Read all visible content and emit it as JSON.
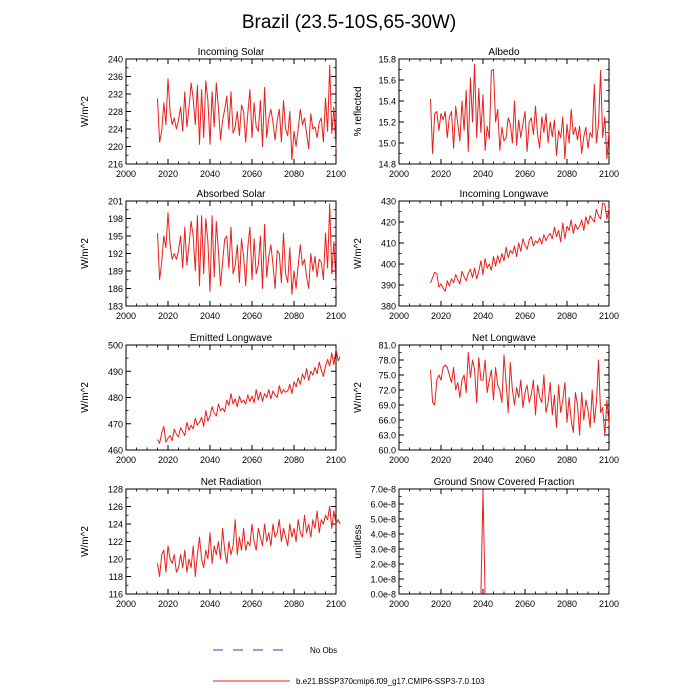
{
  "figure": {
    "title": "Brazil (23.5-10S,65-30W)",
    "legend": [
      {
        "label": "No Obs",
        "style": "dashed",
        "color": "#3b3bbb"
      },
      {
        "label": "b.e21.BSSP370cmip6.f09_g17.CMIP6-SSP3-7.0.103",
        "style": "solid",
        "color": "#e8201b"
      }
    ]
  },
  "chart_data": [
    {
      "type": "line",
      "title": "Incoming Solar",
      "ylabel": "W/m^2",
      "xlim": [
        2000,
        2100
      ],
      "ylim": [
        216,
        240
      ],
      "xticks": [
        2000,
        2020,
        2040,
        2060,
        2080,
        2100
      ],
      "yticks": [
        216,
        220,
        224,
        228,
        232,
        236,
        240
      ],
      "ytick_labels": [
        "216",
        "220",
        "224",
        "228",
        "232",
        "236",
        "240"
      ],
      "x_start": 2015,
      "values": [
        231.0,
        221.0,
        223.5,
        230.0,
        225.0,
        235.5,
        228.0,
        225.0,
        226.5,
        224.0,
        226.0,
        229.0,
        223.5,
        232.5,
        224.5,
        229.0,
        234.5,
        231.0,
        225.0,
        234.0,
        220.5,
        233.0,
        222.0,
        235.0,
        230.5,
        220.5,
        232.5,
        224.5,
        234.5,
        229.0,
        221.5,
        226.0,
        228.5,
        231.5,
        224.0,
        232.5,
        223.0,
        224.5,
        228.0,
        222.5,
        229.5,
        228.0,
        221.0,
        227.5,
        233.0,
        222.0,
        230.0,
        224.5,
        223.5,
        230.5,
        220.0,
        233.5,
        222.0,
        226.5,
        228.5,
        225.5,
        221.5,
        226.0,
        228.5,
        221.0,
        230.5,
        224.0,
        222.5,
        228.0,
        217.0,
        223.5,
        220.0,
        224.0,
        228.5,
        225.0,
        226.5,
        223.0,
        219.5,
        227.5,
        224.0,
        224.5,
        222.0,
        225.5,
        226.5,
        221.0,
        231.0,
        223.5,
        238.5,
        223.0,
        229.0,
        219.5
      ]
    },
    {
      "type": "line",
      "title": "Albedo",
      "ylabel": "% reflected",
      "xlim": [
        2000,
        2100
      ],
      "ylim": [
        14.8,
        15.8
      ],
      "xticks": [
        2000,
        2020,
        2040,
        2060,
        2080,
        2100
      ],
      "yticks": [
        14.8,
        15.0,
        15.2,
        15.4,
        15.6,
        15.8
      ],
      "ytick_labels": [
        "14.8",
        "15.0",
        "15.2",
        "15.4",
        "15.6",
        "15.8"
      ],
      "x_start": 2015,
      "values": [
        15.42,
        14.9,
        15.28,
        15.3,
        15.12,
        15.28,
        15.22,
        15.3,
        15.05,
        15.25,
        15.3,
        14.95,
        15.35,
        15.18,
        15.02,
        15.4,
        15.12,
        15.5,
        14.92,
        15.62,
        15.2,
        15.75,
        15.05,
        15.52,
        15.1,
        15.46,
        14.93,
        15.16,
        15.04,
        15.69,
        15.7,
        15.2,
        15.32,
        14.93,
        15.15,
        15.02,
        15.05,
        15.24,
        15.18,
        15.0,
        15.4,
        14.98,
        15.22,
        15.05,
        15.18,
        15.3,
        14.92,
        15.2,
        15.24,
        15.08,
        15.35,
        15.08,
        14.95,
        15.25,
        15.1,
        15.28,
        15.0,
        15.2,
        15.06,
        15.22,
        14.88,
        15.12,
        15.05,
        15.25,
        14.85,
        15.18,
        15.0,
        15.32,
        15.08,
        15.15,
        15.03,
        15.16,
        14.9,
        15.06,
        15.15,
        14.95,
        15.1,
        15.05,
        15.56,
        15.0,
        15.18,
        15.69,
        15.05,
        15.25,
        14.85,
        15.12
      ]
    },
    {
      "type": "line",
      "title": "Absorbed Solar",
      "ylabel": "W/m^2",
      "xlim": [
        2000,
        2100
      ],
      "ylim": [
        183,
        201
      ],
      "xticks": [
        2000,
        2020,
        2040,
        2060,
        2080,
        2100
      ],
      "yticks": [
        183,
        186,
        189,
        192,
        195,
        198,
        201
      ],
      "ytick_labels": [
        "183",
        "186",
        "189",
        "192",
        "195",
        "198",
        "201"
      ],
      "x_start": 2015,
      "values": [
        195.5,
        187.5,
        190.5,
        195.0,
        193.0,
        199.0,
        193.5,
        191.0,
        192.0,
        191.0,
        192.5,
        195.0,
        189.5,
        196.5,
        190.0,
        193.5,
        197.5,
        195.0,
        189.0,
        198.5,
        186.5,
        198.5,
        188.5,
        198.0,
        194.0,
        185.5,
        198.5,
        188.0,
        197.5,
        192.5,
        186.5,
        190.5,
        194.5,
        195.0,
        189.5,
        196.5,
        188.5,
        190.0,
        193.5,
        187.0,
        194.5,
        191.5,
        186.5,
        193.0,
        196.5,
        187.5,
        194.5,
        188.5,
        190.0,
        195.0,
        186.0,
        197.0,
        188.0,
        191.5,
        193.5,
        190.0,
        186.0,
        192.5,
        192.0,
        187.0,
        195.5,
        188.5,
        187.0,
        193.0,
        185.0,
        189.0,
        186.0,
        190.0,
        193.5,
        190.0,
        191.0,
        188.0,
        186.0,
        192.0,
        189.0,
        191.5,
        188.0,
        191.0,
        190.5,
        187.5,
        195.5,
        189.5,
        200.5,
        188.5,
        194.0,
        186.5
      ]
    },
    {
      "type": "line",
      "title": "Incoming Longwave",
      "ylabel": "W/m^2",
      "xlim": [
        2000,
        2100
      ],
      "ylim": [
        380,
        430
      ],
      "xticks": [
        2000,
        2020,
        2040,
        2060,
        2080,
        2100
      ],
      "yticks": [
        380,
        390,
        400,
        410,
        420,
        430
      ],
      "ytick_labels": [
        "380",
        "390",
        "400",
        "410",
        "420",
        "430"
      ],
      "x_start": 2015,
      "values": [
        391.0,
        393.5,
        396.0,
        395.5,
        389.0,
        390.5,
        388.5,
        387.0,
        392.0,
        389.5,
        393.0,
        391.0,
        395.0,
        392.5,
        390.5,
        396.5,
        394.0,
        392.0,
        395.5,
        397.5,
        393.5,
        398.0,
        393.0,
        396.5,
        401.5,
        395.0,
        402.5,
        398.0,
        400.0,
        397.0,
        403.5,
        399.0,
        404.0,
        400.5,
        405.0,
        401.5,
        408.0,
        403.0,
        406.5,
        405.0,
        408.5,
        403.5,
        410.0,
        406.0,
        412.0,
        409.0,
        407.0,
        411.5,
        413.0,
        408.5,
        411.0,
        410.0,
        412.5,
        409.5,
        414.0,
        411.0,
        413.5,
        414.5,
        412.0,
        417.5,
        413.0,
        416.0,
        410.5,
        419.5,
        412.0,
        418.0,
        416.0,
        421.0,
        414.5,
        419.0,
        416.5,
        418.0,
        421.0,
        416.0,
        422.5,
        419.0,
        423.0,
        421.5,
        420.0,
        426.0,
        423.0,
        421.5,
        429.0,
        428.5,
        421.5,
        426.5
      ]
    },
    {
      "type": "line",
      "title": "Emitted Longwave",
      "ylabel": "W/m^2",
      "xlim": [
        2000,
        2100
      ],
      "ylim": [
        460,
        500
      ],
      "xticks": [
        2000,
        2020,
        2040,
        2060,
        2080,
        2100
      ],
      "yticks": [
        460,
        470,
        480,
        490,
        500
      ],
      "ytick_labels": [
        "460",
        "470",
        "480",
        "490",
        "500"
      ],
      "x_start": 2015,
      "values": [
        464.0,
        462.5,
        466.5,
        469.0,
        463.0,
        464.5,
        465.5,
        463.5,
        468.0,
        466.0,
        465.0,
        468.5,
        467.0,
        465.5,
        470.5,
        467.5,
        469.5,
        468.0,
        472.0,
        469.5,
        470.5,
        472.5,
        469.0,
        475.0,
        471.0,
        473.0,
        476.5,
        474.0,
        473.0,
        477.5,
        475.0,
        476.0,
        474.5,
        479.0,
        477.0,
        481.5,
        477.5,
        479.5,
        476.5,
        480.5,
        478.0,
        479.0,
        477.5,
        481.0,
        478.5,
        480.5,
        478.0,
        483.0,
        479.0,
        482.0,
        478.5,
        481.5,
        480.0,
        483.0,
        479.5,
        482.5,
        481.0,
        480.0,
        484.5,
        481.5,
        483.0,
        482.0,
        482.5,
        485.0,
        481.5,
        486.0,
        484.0,
        487.5,
        485.0,
        489.0,
        487.0,
        491.0,
        486.5,
        490.0,
        488.5,
        491.5,
        489.0,
        493.5,
        490.5,
        488.0,
        492.0,
        494.5,
        492.0,
        497.0,
        492.5,
        498.5,
        494.0,
        495.5
      ]
    },
    {
      "type": "line",
      "title": "Net Longwave",
      "ylabel": "W/m^2",
      "xlim": [
        2000,
        2100
      ],
      "ylim": [
        60.0,
        81.0
      ],
      "xticks": [
        2000,
        2020,
        2040,
        2060,
        2080,
        2100
      ],
      "yticks": [
        60.0,
        63.0,
        66.0,
        69.0,
        72.0,
        75.0,
        78.0,
        81.0
      ],
      "ytick_labels": [
        "60.0",
        "63.0",
        "66.0",
        "69.0",
        "72.0",
        "75.0",
        "78.0",
        "81.0"
      ],
      "x_start": 2015,
      "values": [
        76.0,
        69.5,
        69.0,
        74.0,
        75.0,
        74.0,
        76.5,
        77.0,
        76.5,
        75.0,
        73.5,
        76.5,
        72.0,
        73.5,
        70.5,
        74.0,
        75.0,
        71.5,
        79.5,
        74.5,
        78.0,
        76.0,
        69.5,
        78.5,
        74.0,
        74.0,
        78.0,
        71.5,
        74.0,
        76.0,
        70.0,
        76.5,
        73.0,
        72.0,
        69.5,
        79.0,
        73.5,
        67.5,
        77.5,
        72.0,
        69.0,
        72.5,
        70.5,
        74.0,
        68.5,
        71.5,
        73.0,
        69.5,
        71.0,
        74.0,
        67.0,
        73.0,
        70.5,
        69.5,
        75.0,
        67.5,
        69.5,
        73.5,
        67.0,
        71.0,
        64.5,
        73.0,
        67.5,
        70.0,
        73.5,
        65.5,
        70.5,
        66.0,
        63.5,
        71.5,
        69.0,
        63.0,
        71.5,
        66.0,
        70.0,
        68.0,
        64.5,
        72.0,
        65.5,
        69.5,
        78.0,
        67.5,
        68.5,
        63.0,
        70.0,
        65.0
      ]
    },
    {
      "type": "line",
      "title": "Net Radiation",
      "ylabel": "W/m^2",
      "xlim": [
        2000,
        2100
      ],
      "ylim": [
        116,
        128
      ],
      "xticks": [
        2000,
        2020,
        2040,
        2060,
        2080,
        2100
      ],
      "yticks": [
        116,
        118,
        120,
        122,
        124,
        126,
        128
      ],
      "ytick_labels": [
        "116",
        "118",
        "120",
        "122",
        "124",
        "126",
        "128"
      ],
      "x_start": 2015,
      "values": [
        119.5,
        118.0,
        120.5,
        121.0,
        118.5,
        121.5,
        120.0,
        119.5,
        120.5,
        118.5,
        119.0,
        120.5,
        119.0,
        121.0,
        118.5,
        120.0,
        119.0,
        121.5,
        118.0,
        120.5,
        122.5,
        120.0,
        119.0,
        121.0,
        120.0,
        123.0,
        119.5,
        121.5,
        120.5,
        122.0,
        120.0,
        123.5,
        121.0,
        119.5,
        122.0,
        120.5,
        121.5,
        124.5,
        120.5,
        122.5,
        121.0,
        123.5,
        121.0,
        122.0,
        121.5,
        124.0,
        122.0,
        121.0,
        123.5,
        122.5,
        121.5,
        124.0,
        122.0,
        123.0,
        121.5,
        124.0,
        122.5,
        123.0,
        124.5,
        122.0,
        123.5,
        122.5,
        121.5,
        124.0,
        122.5,
        123.5,
        122.0,
        124.5,
        123.0,
        122.5,
        125.0,
        123.0,
        124.0,
        122.5,
        124.5,
        123.5,
        125.5,
        123.0,
        124.5,
        124.0,
        125.0,
        124.5,
        126.0,
        123.5,
        125.5,
        124.0,
        124.5,
        124.0
      ]
    },
    {
      "type": "line",
      "title": "Ground Snow Covered Fraction",
      "ylabel": "unitless",
      "xlim": [
        2000,
        2100
      ],
      "ylim": [
        0,
        7e-08
      ],
      "xticks": [
        2000,
        2020,
        2040,
        2060,
        2080,
        2100
      ],
      "yticks": [
        0,
        1e-08,
        2e-08,
        3e-08,
        4e-08,
        5e-08,
        6e-08,
        7e-08
      ],
      "ytick_labels": [
        "0.0e-8",
        "1.0e-8",
        "2.0e-8",
        "3.0e-8",
        "4.0e-8",
        "5.0e-8",
        "6.0e-8",
        "7.0e-8"
      ],
      "x": [
        2039,
        2040,
        2041
      ],
      "values": [
        0,
        6.9e-08,
        0
      ]
    }
  ]
}
